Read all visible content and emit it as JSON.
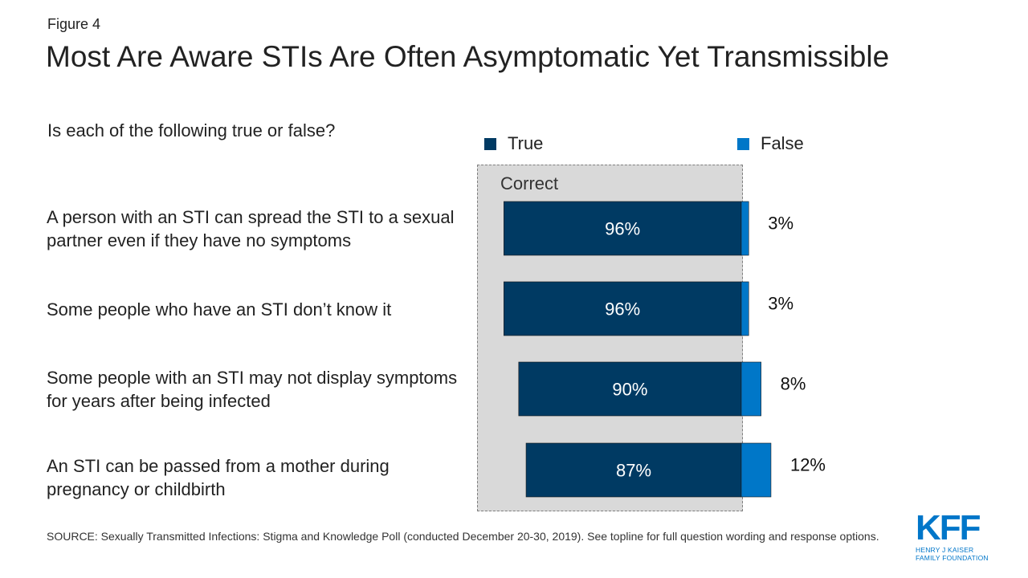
{
  "figure_label": "Figure 4",
  "title": "Most Are Aware STIs Are Often Asymptomatic Yet Transmissible",
  "question": "Is each of the following true or false?",
  "correct_label": "Correct",
  "source": "SOURCE: Sexually Transmitted Infections: Stigma and Knowledge Poll (conducted December 20-30, 2019). See topline for full question wording and response options.",
  "logo": {
    "mark": "KFF",
    "line1": "HENRY J KAISER",
    "line2": "FAMILY FOUNDATION"
  },
  "colors": {
    "true": "#003a63",
    "false": "#0077c8",
    "correct_bg": "#d9d9d9"
  },
  "chart_data": {
    "type": "bar",
    "orientation": "horizontal",
    "stacked": true,
    "title": "",
    "legend_placement": "top",
    "categories": [
      "A person with an STI can spread the STI to a sexual partner even if they have no symptoms",
      "Some people who have an STI don’t know it",
      "Some people with an STI may not display symptoms for years after being infected",
      "An STI can be passed from a mother during pregnancy or childbirth"
    ],
    "series": [
      {
        "name": "True",
        "values": [
          96,
          96,
          90,
          87
        ],
        "labels": [
          "96%",
          "96%",
          "90%",
          "87%"
        ],
        "color": "#003a63"
      },
      {
        "name": "False",
        "values": [
          3,
          3,
          8,
          12
        ],
        "labels": [
          "3%",
          "3%",
          "8%",
          "12%"
        ],
        "color": "#0077c8"
      }
    ],
    "unit": "%",
    "grid": false
  }
}
